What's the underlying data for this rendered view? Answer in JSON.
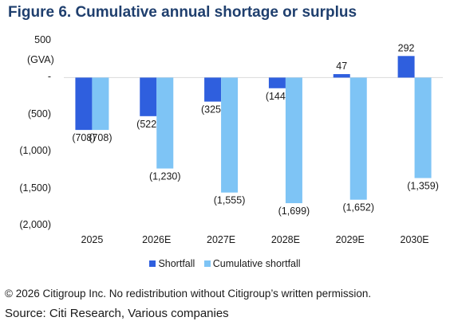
{
  "header": {
    "title": "Figure 6. Cumulative annual shortage or surplus"
  },
  "chart_data": {
    "type": "bar",
    "categories": [
      "2025",
      "2026E",
      "2027E",
      "2028E",
      "2029E",
      "2030E"
    ],
    "series": [
      {
        "name": "Shortfall",
        "values": [
          -708,
          -522,
          -325,
          -144,
          47,
          292
        ],
        "color": "#2f5fde"
      },
      {
        "name": "Cumulative shortfall",
        "values": [
          -708,
          -1230,
          -1555,
          -1699,
          -1652,
          -1359
        ],
        "color": "#7ec4f5"
      }
    ],
    "data_labels": [
      [
        "(708)",
        "(522)",
        "(325)",
        "(144)",
        "47",
        "292"
      ],
      [
        "(708)",
        "(1,230)",
        "(1,555)",
        "(1,699)",
        "(1,652)",
        "(1,359)"
      ]
    ],
    "yticks": [
      500,
      0,
      -500,
      -1000,
      -1500,
      -2000
    ],
    "ytick_labels": [
      "500",
      "-",
      "(500)",
      "(1,000)",
      "(1,500)",
      "(2,000)"
    ],
    "ylabel": "(GVA)",
    "ylim": [
      -2000,
      500
    ],
    "grid": false,
    "legend_position": "bottom"
  },
  "footer": {
    "copyright": "© 2026 Citigroup Inc. No redistribution without Citigroup’s written permission.",
    "source": "Source: Citi Research, Various companies"
  }
}
